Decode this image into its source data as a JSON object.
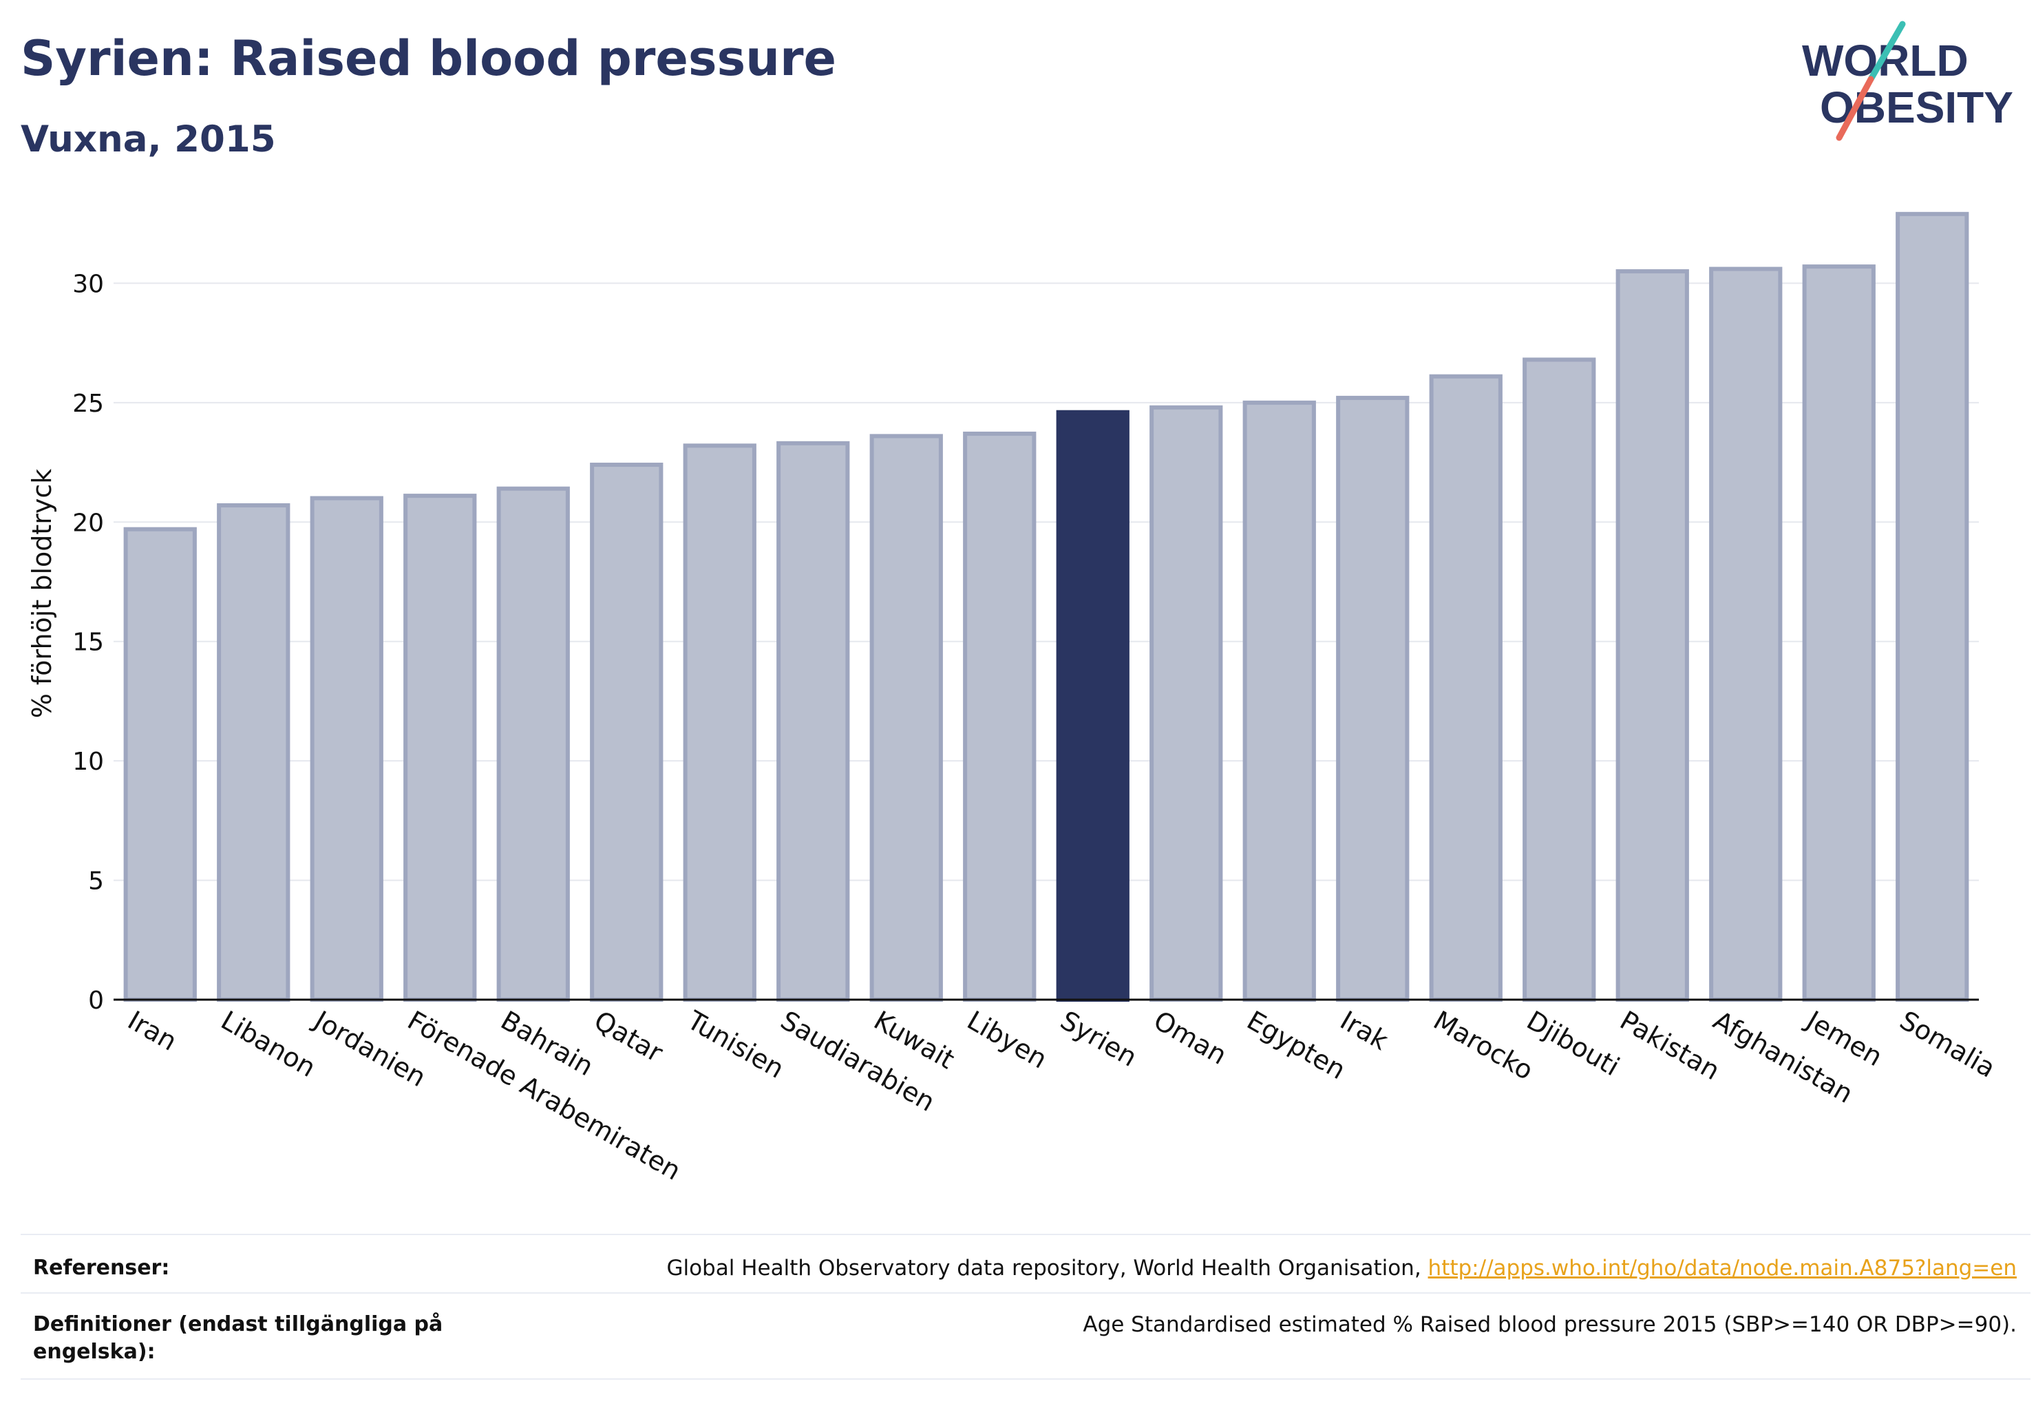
{
  "header": {
    "title": "Syrien: Raised blood pressure",
    "subtitle": "Vuxna, 2015"
  },
  "logo": {
    "line1": "WORLD",
    "line2": "OBESITY",
    "accent_teal": "#3bbfb4",
    "accent_coral": "#e96a5a"
  },
  "colors": {
    "bar": "#b9bfcf",
    "bar_stroke": "#9ea6bf",
    "highlight": "#2a3561",
    "text": "#2a3561",
    "grid": "#e6e8ee"
  },
  "chart_data": {
    "type": "bar",
    "categories": [
      "Iran",
      "Libanon",
      "Jordanien",
      "Förenade Arabemiraten",
      "Bahrain",
      "Qatar",
      "Tunisien",
      "Saudiarabien",
      "Kuwait",
      "Libyen",
      "Syrien",
      "Oman",
      "Egypten",
      "Irak",
      "Marocko",
      "Djibouti",
      "Pakistan",
      "Afghanistan",
      "Jemen",
      "Somalia"
    ],
    "values": [
      19.7,
      20.7,
      21.0,
      21.1,
      21.4,
      22.4,
      23.2,
      23.3,
      23.6,
      23.7,
      24.6,
      24.8,
      25.0,
      25.2,
      26.1,
      26.8,
      30.5,
      30.6,
      30.7,
      32.9
    ],
    "highlight": "Syrien",
    "ylabel": "% förhöjt blodtryck",
    "ylim": [
      0,
      33.5
    ],
    "yticks": [
      0,
      5,
      10,
      15,
      20,
      25,
      30
    ],
    "grid": true
  },
  "footer": {
    "ref_label": "Referenser:",
    "ref_text": "Global Health Observatory data repository, World Health Organisation,",
    "ref_link": "http://apps.who.int/gho/data/node.main.A875?lang=en",
    "def_label": "Definitioner (endast tillgängliga på engelska):",
    "def_text": "Age Standardised estimated % Raised blood pressure 2015 (SBP>=140 OR DBP>=90)."
  }
}
